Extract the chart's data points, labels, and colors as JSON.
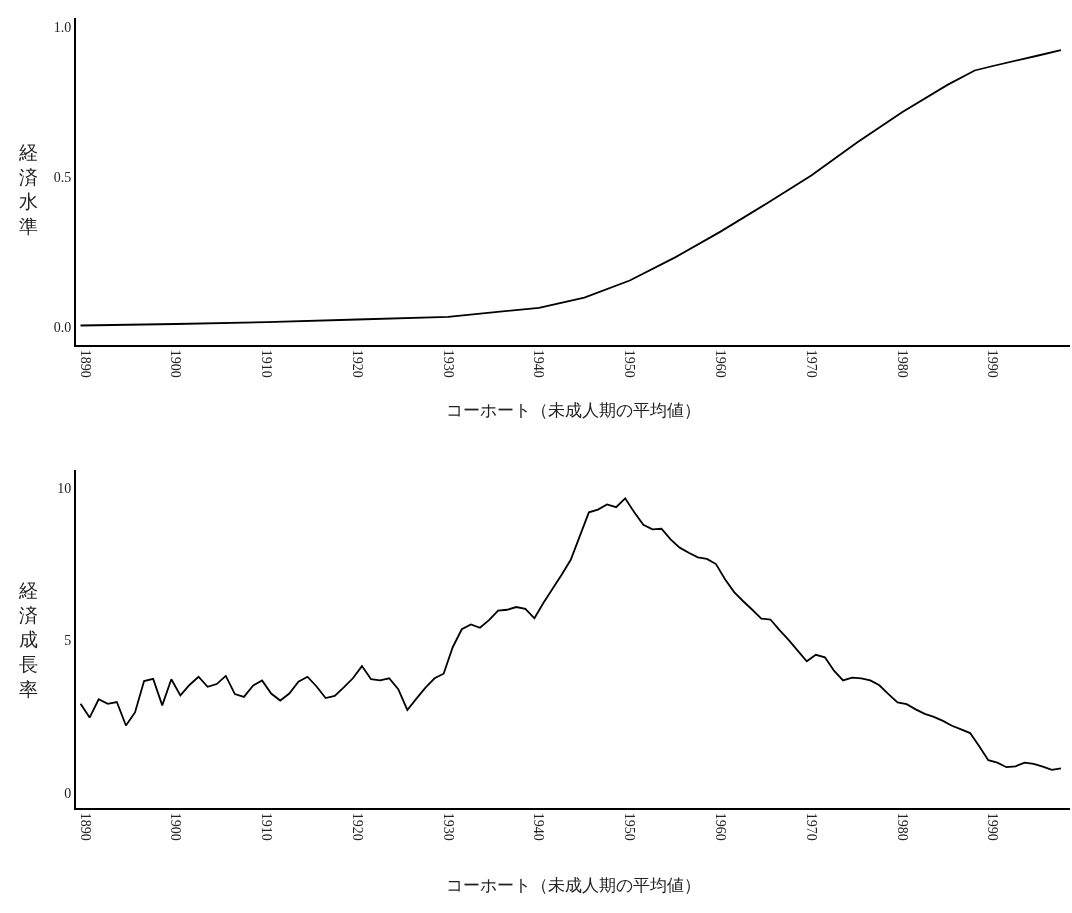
{
  "chart_data": [
    {
      "type": "line",
      "xlabel": "コーホート（未成人期の平均値）",
      "ylabel": "経済水準",
      "color": "#000000",
      "line_style": "solid",
      "marker": "none",
      "x": [
        1889.5,
        1900,
        1910,
        1920,
        1930,
        1940,
        1945,
        1950,
        1955,
        1960,
        1965,
        1970,
        1975,
        1980,
        1985,
        1988,
        1990,
        1995,
        1997.5
      ],
      "values": [
        0.005,
        0.01,
        0.016,
        0.025,
        0.034,
        0.064,
        0.098,
        0.155,
        0.232,
        0.318,
        0.41,
        0.505,
        0.614,
        0.716,
        0.807,
        0.855,
        0.87,
        0.905,
        0.923
      ],
      "xlim": [
        1889,
        1998.5
      ],
      "ylim": [
        -0.06,
        1.03
      ],
      "xticks": [
        1890,
        1900,
        1910,
        1920,
        1930,
        1940,
        1950,
        1960,
        1970,
        1980,
        1990
      ],
      "yticks": [
        {
          "value": 0,
          "label": "0.0"
        },
        0.5,
        {
          "value": 1,
          "label": "1.0"
        }
      ]
    },
    {
      "type": "line",
      "xlabel": "コーホート（未成人期の平均値）",
      "ylabel": "経済成長率",
      "color": "#000000",
      "line_style": "solid",
      "marker": "none",
      "x": [
        1889.5,
        1890.5,
        1891.5,
        1892.5,
        1893.5,
        1894.5,
        1895.5,
        1896.5,
        1897.5,
        1898.5,
        1899.5,
        1900.5,
        1901.5,
        1902.5,
        1903.5,
        1904.5,
        1905.5,
        1906.5,
        1907.5,
        1908.5,
        1909.5,
        1910.5,
        1911.5,
        1912.5,
        1913.5,
        1914.5,
        1915.5,
        1916.5,
        1917.5,
        1918.5,
        1919.5,
        1920.5,
        1921.5,
        1922.5,
        1923.5,
        1924.5,
        1925.5,
        1926.5,
        1927.5,
        1928.5,
        1929.5,
        1930.5,
        1931.5,
        1932.5,
        1933.5,
        1934.5,
        1935.5,
        1936.5,
        1937.5,
        1938.5,
        1939.5,
        1940.5,
        1941.5,
        1942.5,
        1943.5,
        1944.5,
        1945.5,
        1946.5,
        1947.5,
        1948.5,
        1949.5,
        1950.5,
        1951.5,
        1952.5,
        1953.5,
        1954.5,
        1955.5,
        1956.5,
        1957.5,
        1958.5,
        1959.5,
        1960.5,
        1961.5,
        1962.5,
        1963.5,
        1964.5,
        1965.5,
        1966.5,
        1967.5,
        1968.5,
        1969.5,
        1970.5,
        1971.5,
        1972.5,
        1973.5,
        1974.5,
        1975.5,
        1976.5,
        1977.5,
        1978.5,
        1979.5,
        1980.5,
        1981.5,
        1982.5,
        1983.5,
        1984.5,
        1985.5,
        1986.5,
        1987.5,
        1988.5,
        1989.5,
        1990.5,
        1991.5,
        1992.5,
        1993.5,
        1994.5,
        1995.5,
        1996.5,
        1997.5
      ],
      "values": [
        2.92,
        2.47,
        3.07,
        2.92,
        2.98,
        2.21,
        2.64,
        3.67,
        3.74,
        2.87,
        3.73,
        3.2,
        3.54,
        3.81,
        3.48,
        3.57,
        3.84,
        3.24,
        3.15,
        3.52,
        3.69,
        3.26,
        3.03,
        3.26,
        3.65,
        3.81,
        3.49,
        3.11,
        3.18,
        3.46,
        3.76,
        4.16,
        3.73,
        3.69,
        3.76,
        3.4,
        2.72,
        3.09,
        3.45,
        3.76,
        3.91,
        4.78,
        5.37,
        5.53,
        5.42,
        5.67,
        5.98,
        6.01,
        6.1,
        6.04,
        5.73,
        6.24,
        6.7,
        7.16,
        7.65,
        8.43,
        9.21,
        9.3,
        9.47,
        9.38,
        9.67,
        9.21,
        8.8,
        8.65,
        8.67,
        8.32,
        8.05,
        7.88,
        7.73,
        7.68,
        7.51,
        7.01,
        6.59,
        6.29,
        6.01,
        5.72,
        5.69,
        5.34,
        5.02,
        4.67,
        4.32,
        4.53,
        4.45,
        4.01,
        3.69,
        3.78,
        3.76,
        3.69,
        3.53,
        3.24,
        2.97,
        2.91,
        2.74,
        2.59,
        2.49,
        2.36,
        2.2,
        2.08,
        1.96,
        1.53,
        1.07,
        0.99,
        0.84,
        0.87,
        0.99,
        0.95,
        0.86,
        0.75,
        0.8
      ],
      "xlim": [
        1889,
        1998.5
      ],
      "ylim": [
        -0.5,
        10.6
      ],
      "xticks": [
        1890,
        1900,
        1910,
        1920,
        1930,
        1940,
        1950,
        1960,
        1970,
        1980,
        1990
      ],
      "yticks": [
        0,
        5,
        10
      ]
    }
  ]
}
